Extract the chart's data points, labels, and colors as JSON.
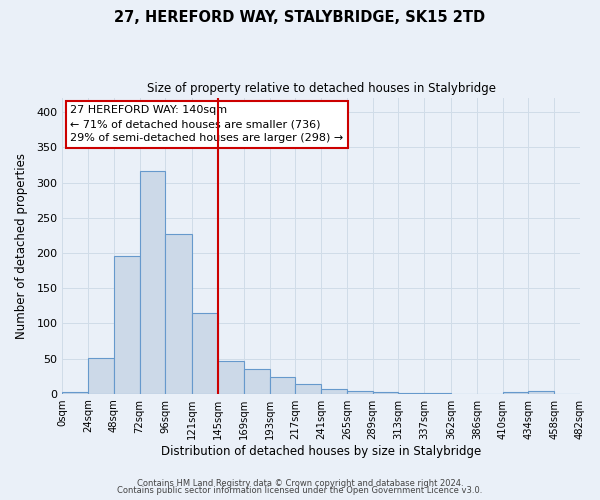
{
  "title": "27, HEREFORD WAY, STALYBRIDGE, SK15 2TD",
  "subtitle": "Size of property relative to detached houses in Stalybridge",
  "xlabel": "Distribution of detached houses by size in Stalybridge",
  "ylabel": "Number of detached properties",
  "bin_edges": [
    0,
    24,
    48,
    72,
    96,
    121,
    145,
    169,
    193,
    217,
    241,
    265,
    289,
    313,
    337,
    362,
    386,
    410,
    434,
    458,
    482
  ],
  "bin_labels": [
    "0sqm",
    "24sqm",
    "48sqm",
    "72sqm",
    "96sqm",
    "121sqm",
    "145sqm",
    "169sqm",
    "193sqm",
    "217sqm",
    "241sqm",
    "265sqm",
    "289sqm",
    "313sqm",
    "337sqm",
    "362sqm",
    "386sqm",
    "410sqm",
    "434sqm",
    "458sqm",
    "482sqm"
  ],
  "bar_values": [
    2,
    51,
    196,
    317,
    227,
    115,
    46,
    35,
    24,
    14,
    7,
    4,
    3,
    1,
    1,
    0,
    0,
    2,
    4,
    0
  ],
  "vline_x": 145,
  "ylim": [
    0,
    420
  ],
  "yticks": [
    0,
    50,
    100,
    150,
    200,
    250,
    300,
    350,
    400
  ],
  "bar_facecolor": "#ccd9e8",
  "bar_edgecolor": "#6699cc",
  "vline_color": "#cc0000",
  "annotation_text": "27 HEREFORD WAY: 140sqm\n← 71% of detached houses are smaller (736)\n29% of semi-detached houses are larger (298) →",
  "annotation_boxcolor": "#ffffff",
  "annotation_boxedge": "#cc0000",
  "grid_color": "#d0dce8",
  "bg_color": "#eaf0f8",
  "footer1": "Contains HM Land Registry data © Crown copyright and database right 2024.",
  "footer2": "Contains public sector information licensed under the Open Government Licence v3.0."
}
